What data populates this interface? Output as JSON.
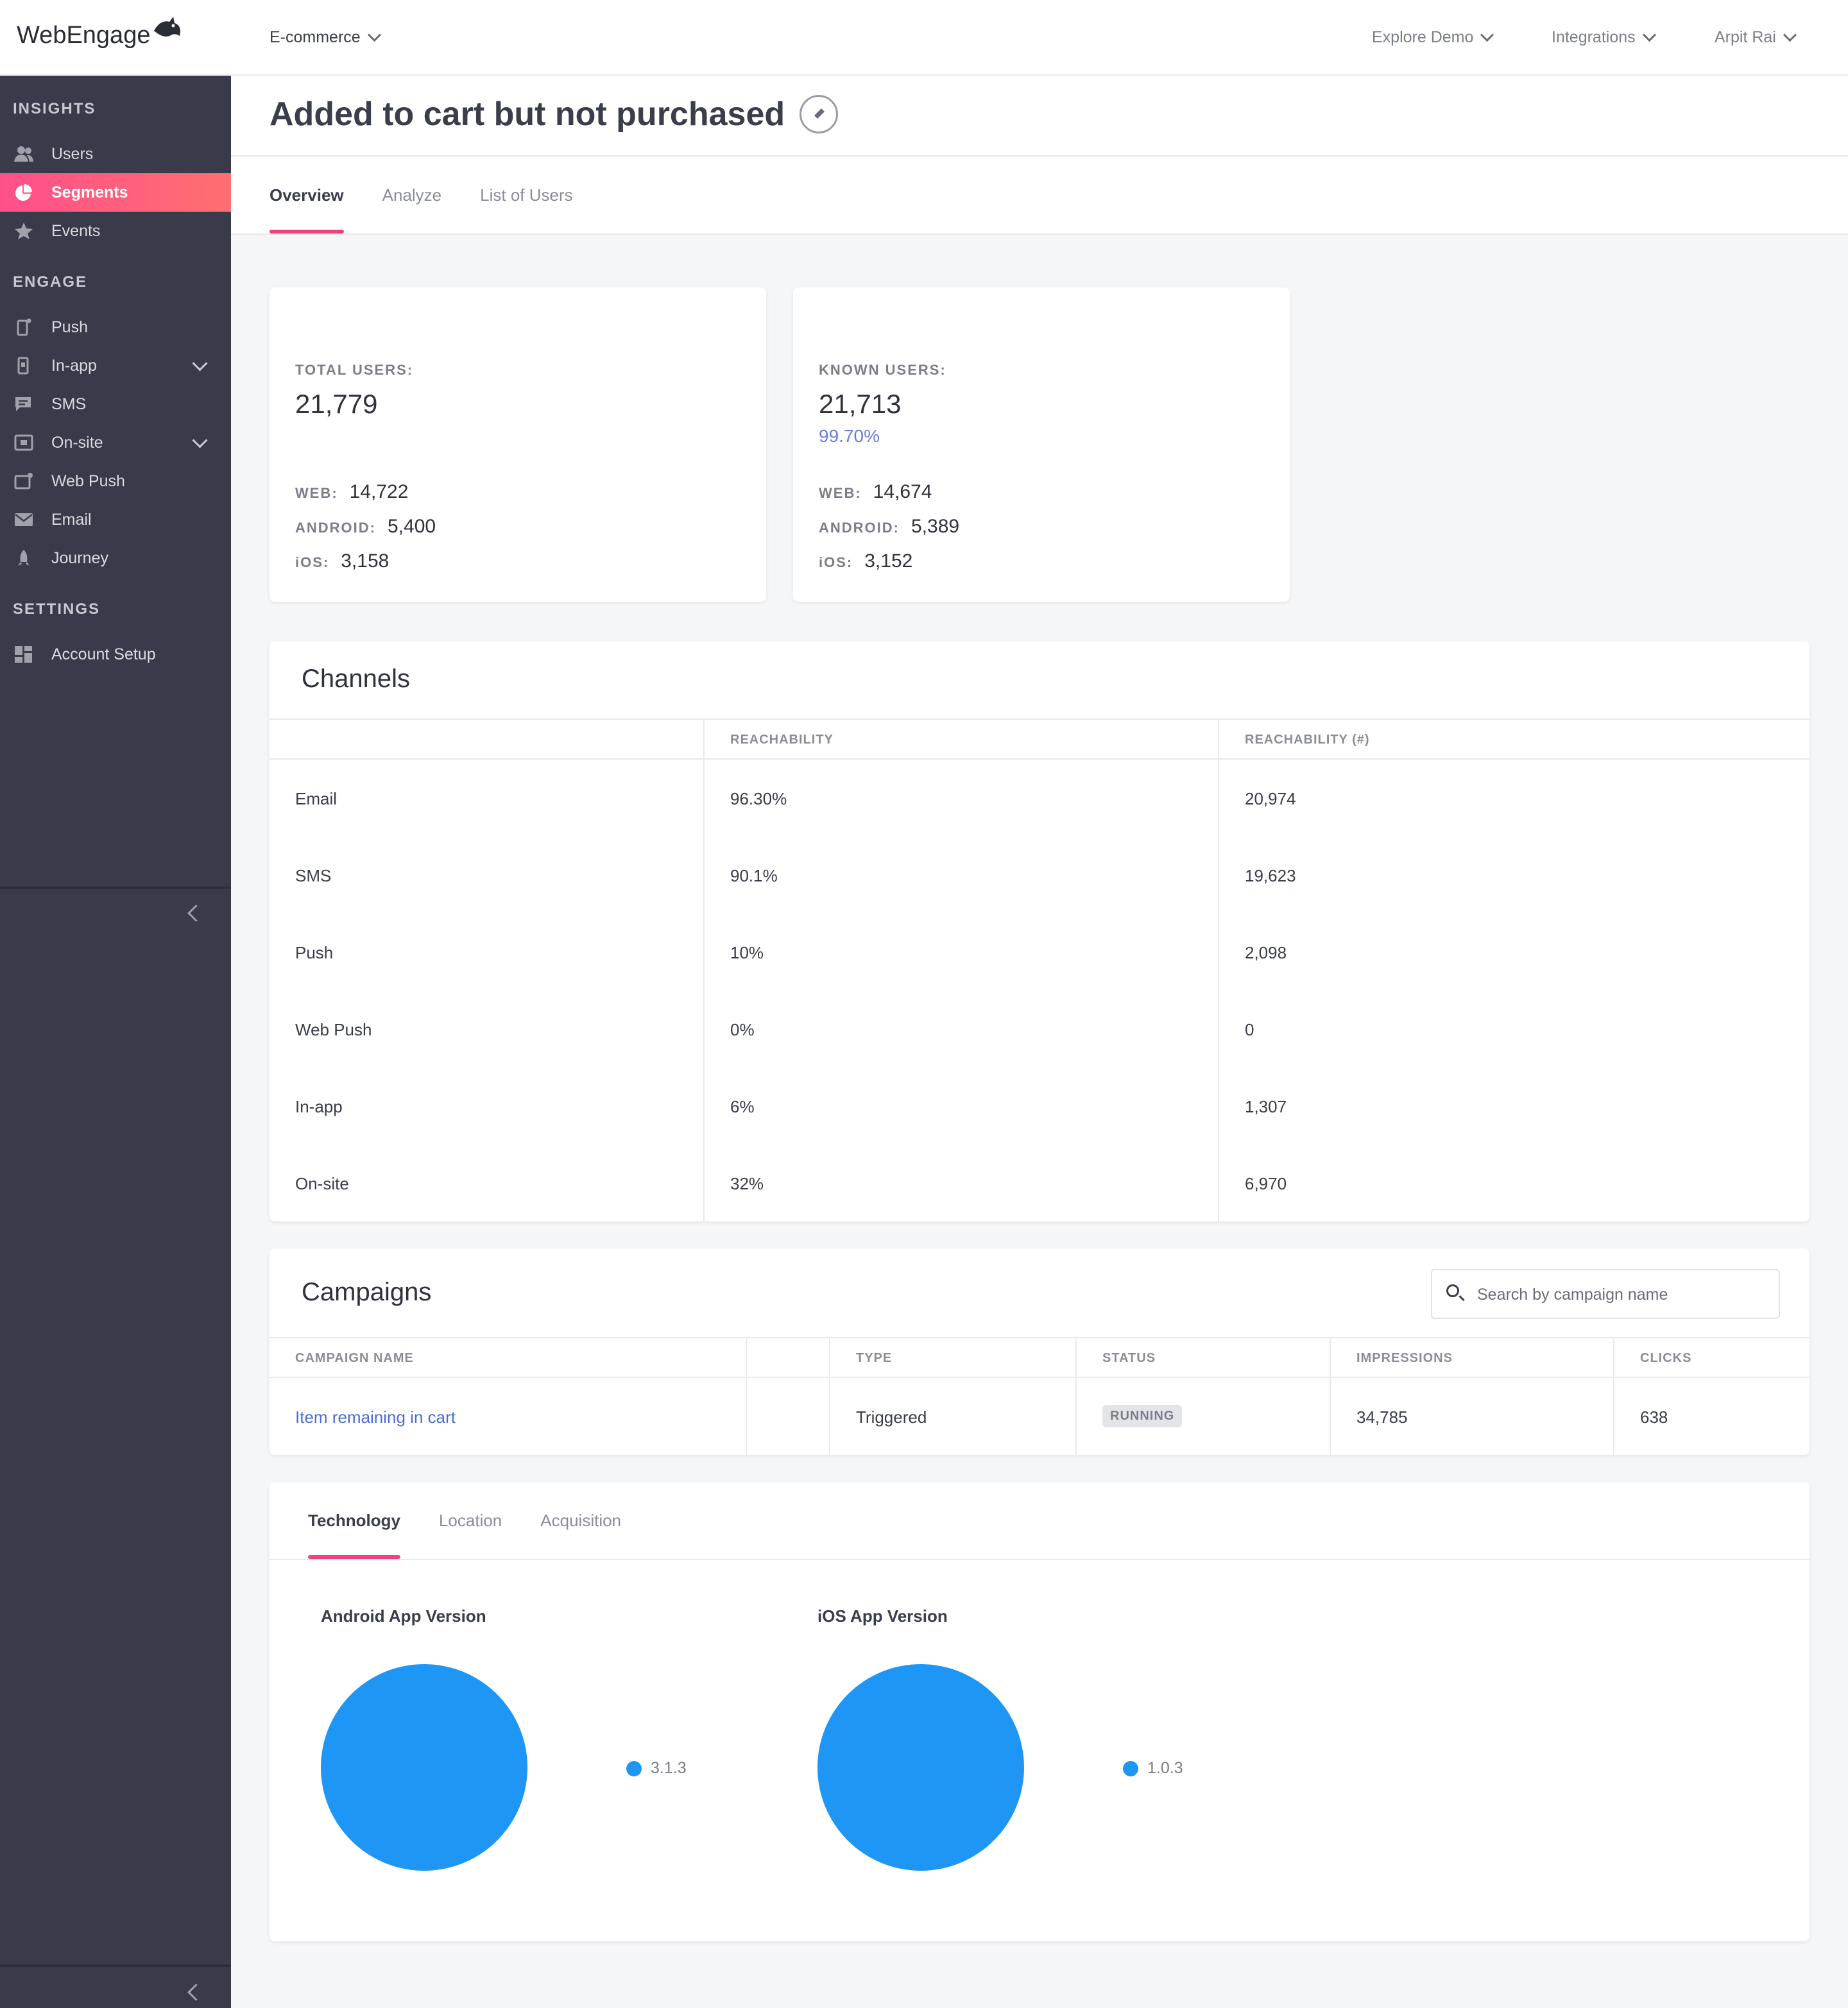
{
  "brand": {
    "logo_text": "WebEngage"
  },
  "topbar": {
    "project": "E-commerce",
    "explore": "Explore Demo",
    "integrations": "Integrations",
    "user": "Arpit Rai"
  },
  "sidebar": {
    "insights": "INSIGHTS",
    "engage": "ENGAGE",
    "settings": "SETTINGS",
    "items": {
      "users": "Users",
      "segments": "Segments",
      "events": "Events",
      "push": "Push",
      "inapp": "In-app",
      "sms": "SMS",
      "onsite": "On-site",
      "webpush": "Web Push",
      "email": "Email",
      "journey": "Journey",
      "account": "Account Setup"
    }
  },
  "page": {
    "title": "Added to cart but not purchased",
    "tabs": {
      "overview": "Overview",
      "analyze": "Analyze",
      "list": "List of Users"
    }
  },
  "stats": {
    "total": {
      "label": "TOTAL USERS:",
      "value": "21,779",
      "web_k": "WEB:",
      "web": "14,722",
      "android_k": "ANDROID:",
      "android": "5,400",
      "ios_k": "iOS:",
      "ios": "3,158"
    },
    "known": {
      "label": "KNOWN USERS:",
      "value": "21,713",
      "pct": "99.70%",
      "web_k": "WEB:",
      "web": "14,674",
      "android_k": "ANDROID:",
      "android": "5,389",
      "ios_k": "iOS:",
      "ios": "3,152"
    }
  },
  "channels": {
    "title": "Channels",
    "headers": {
      "reach": "REACHABILITY",
      "reach_n": "REACHABILITY (#)"
    },
    "rows": [
      {
        "name": "Email",
        "reach": "96.30%",
        "count": "20,974"
      },
      {
        "name": "SMS",
        "reach": "90.1%",
        "count": "19,623"
      },
      {
        "name": "Push",
        "reach": "10%",
        "count": "2,098"
      },
      {
        "name": "Web Push",
        "reach": "0%",
        "count": "0"
      },
      {
        "name": "In-app",
        "reach": "6%",
        "count": "1,307"
      },
      {
        "name": "On-site",
        "reach": "32%",
        "count": "6,970"
      }
    ]
  },
  "campaigns": {
    "title": "Campaigns",
    "search_placeholder": "Search by campaign name",
    "headers": {
      "name": "CAMPAIGN NAME",
      "type": "TYPE",
      "status": "STATUS",
      "impressions": "IMPRESSIONS",
      "clicks": "CLICKS"
    },
    "rows": [
      {
        "name": "Item remaining in cart",
        "type": "Triggered",
        "status": "RUNNING",
        "impressions": "34,785",
        "clicks": "638"
      }
    ]
  },
  "breakdown": {
    "tabs": {
      "technology": "Technology",
      "location": "Location",
      "acquisition": "Acquisition"
    },
    "android_title": "Android App Version",
    "ios_title": "iOS App Version"
  },
  "chart_data": [
    {
      "type": "pie",
      "title": "Android App Version",
      "categories": [
        "3.1.3"
      ],
      "values": [
        100
      ],
      "colors": [
        "#1e96f5"
      ]
    },
    {
      "type": "pie",
      "title": "iOS App Version",
      "categories": [
        "1.0.3"
      ],
      "values": [
        100
      ],
      "colors": [
        "#1e96f5"
      ]
    }
  ],
  "colors": {
    "accent": "#f3417e",
    "sidebar": "#393b4a",
    "pie": "#1e96f5",
    "link": "#4a6bd8"
  }
}
